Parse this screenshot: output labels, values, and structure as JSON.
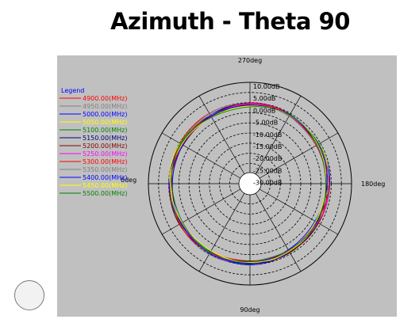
{
  "page": {
    "title": "Azimuth - Theta 90"
  },
  "chart_data": {
    "type": "polar-line",
    "title": "Azimuth - Theta 90",
    "angle_labels": {
      "top": "270deg",
      "right": "180deg",
      "bottom": "90deg",
      "left": "0deg"
    },
    "radial_labels": [
      "10.00dB",
      "5.00dB",
      "0.00dB",
      "-5.00dB",
      "-10.00dB",
      "-15.00dB",
      "-20.00dB",
      "-25.00dB",
      "-30.00dB"
    ],
    "radial_range": [
      -40,
      10
    ],
    "legend_title": "Legend",
    "legend_placement": "left",
    "series": [
      {
        "name": "4900.00(MHz)",
        "color": "#ff0000"
      },
      {
        "name": "4950.00(MHz)",
        "color": "#808080"
      },
      {
        "name": "5000.00(MHz)",
        "color": "#0000ff"
      },
      {
        "name": "5050.00(MHz)",
        "color": "#ffff00"
      },
      {
        "name": "5100.00(MHz)",
        "color": "#008000"
      },
      {
        "name": "5150.00(MHz)",
        "color": "#000080"
      },
      {
        "name": "5200.00(MHz)",
        "color": "#800000"
      },
      {
        "name": "5250.00(MHz)",
        "color": "#ff00ff"
      },
      {
        "name": "5300.00(MHz)",
        "color": "#ff0000"
      },
      {
        "name": "5350.00(MHz)",
        "color": "#808080"
      },
      {
        "name": "5400.00(MHz)",
        "color": "#0000ff"
      },
      {
        "name": "5450.00(MHz)",
        "color": "#ffff00"
      },
      {
        "name": "5500.00(MHz)",
        "color": "#008000"
      }
    ],
    "pattern_gain_db": {
      "angles_deg": [
        0,
        30,
        60,
        90,
        120,
        150,
        180,
        210,
        240,
        270,
        300,
        330
      ],
      "values": [
        -1.2,
        -1.5,
        -1.0,
        -0.6,
        -0.3,
        -0.2,
        -0.4,
        -0.7,
        -0.8,
        -0.5,
        -0.6,
        -1.0
      ]
    },
    "grid": true
  }
}
